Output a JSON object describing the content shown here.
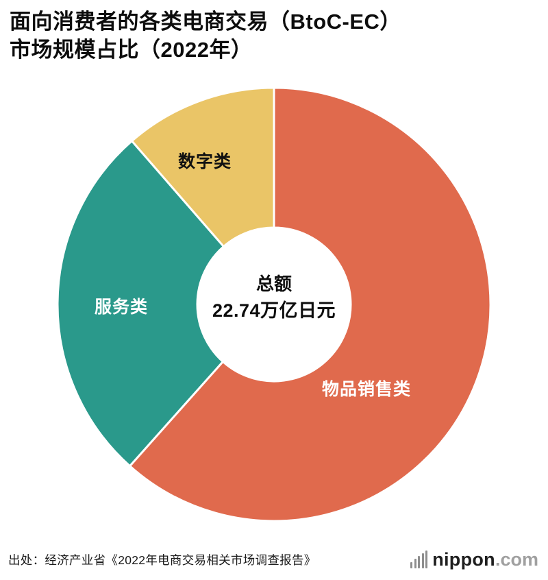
{
  "header": {
    "title_line1": "面向消费者的各类电商交易（BtoC-EC）",
    "title_line2": "市场规模占比（2022年）"
  },
  "chart_data": {
    "type": "pie",
    "style": "donut",
    "title": "面向消费者的各类电商交易（BtoC-EC）市场规模占比（2022年）",
    "start_angle_deg": 0,
    "direction": "clockwise",
    "legend": "none",
    "center_label": {
      "line1": "总额",
      "line2": "22.74万亿日元"
    },
    "total_label": "22.74万亿日元",
    "segments": [
      {
        "label": "物品销售类",
        "percent": 61.6,
        "color": "#E06A4D",
        "text_color": "#ffffff"
      },
      {
        "label": "服务类",
        "percent": 27.0,
        "color": "#2A998B",
        "text_color": "#ffffff"
      },
      {
        "label": "数字类",
        "percent": 11.4,
        "color": "#EAC567",
        "text_color": "#111111"
      }
    ]
  },
  "footer": {
    "source": "出处：经济产业省《2022年电商交易相关市场调查报告》",
    "logo": {
      "name": "nippon",
      "tld": ".com",
      "icon": "sound-bars-icon"
    }
  }
}
